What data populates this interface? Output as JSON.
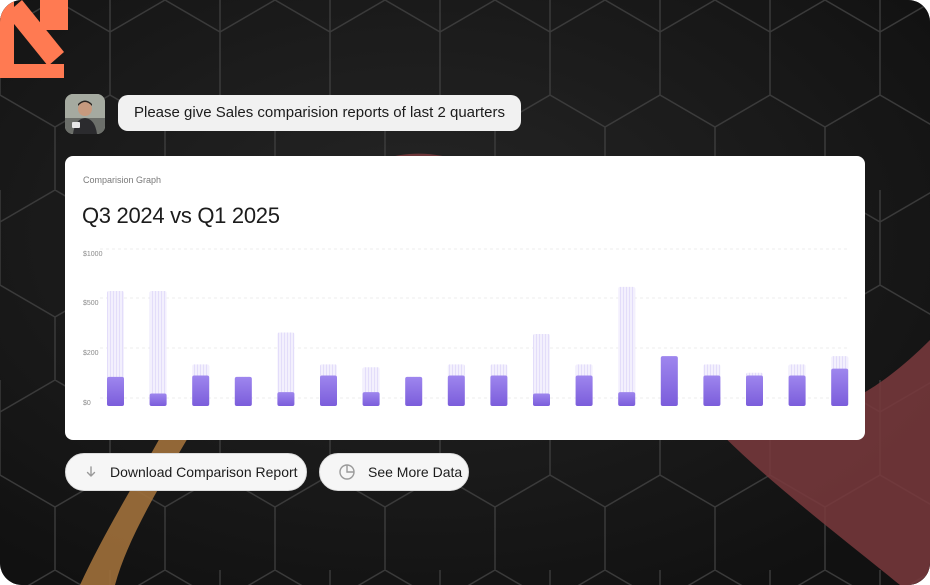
{
  "chat": {
    "avatar_icon": "user-avatar",
    "message": "Please give Sales comparision reports of last 2 quarters"
  },
  "card": {
    "label": "Comparision Graph",
    "title": "Q3 2024 vs Q1 2025"
  },
  "chart_data": {
    "type": "bar",
    "y_tick_labels": [
      "$1000",
      "$500",
      "$200",
      "$0"
    ],
    "y_tick_values": [
      1000,
      500,
      200,
      0
    ],
    "ylim": [
      0,
      1000
    ],
    "grid": true,
    "legend": "none",
    "series": [
      {
        "values": [
          830,
          830,
          300,
          210,
          530,
          300,
          280,
          210,
          300,
          300,
          520,
          300,
          860,
          360,
          300,
          240,
          300,
          360
        ]
      },
      {
        "values": [
          210,
          90,
          220,
          210,
          100,
          220,
          100,
          210,
          220,
          220,
          90,
          220,
          100,
          360,
          220,
          220,
          220,
          270
        ]
      }
    ],
    "colors": {
      "accent": "#8b6ee6",
      "light": "#ece8fb"
    }
  },
  "actions": [
    {
      "label": "Download Comparison Report",
      "icon": "download-arrow-icon"
    },
    {
      "label": "See More Data",
      "icon": "pie-chart-icon"
    }
  ]
}
